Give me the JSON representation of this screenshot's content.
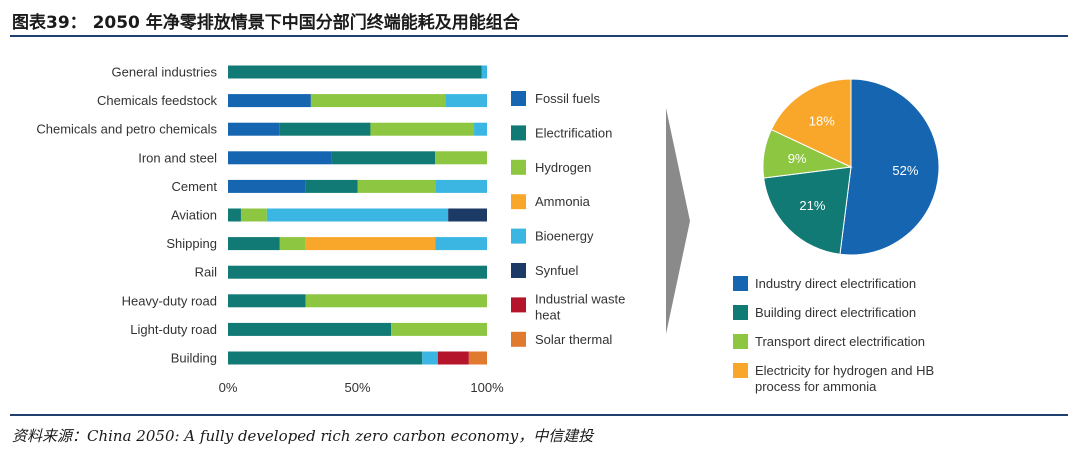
{
  "header": {
    "title": "图表39：  2050 年净零排放情景下中国分部门终端能耗及用能组合"
  },
  "footer": {
    "source": "资料来源：China 2050: A fully developed rich zero carbon economy，中信建投"
  },
  "chart_data": [
    {
      "type": "bar",
      "orientation": "horizontal",
      "stacked": true,
      "categories": [
        "General industries",
        "Chemicals feedstock",
        "Chemicals and petro chemicals",
        "Iron and steel",
        "Cement",
        "Aviation",
        "Shipping",
        "Rail",
        "Heavy-duty road",
        "Light-duty road",
        "Building"
      ],
      "xticks": [
        "0%",
        "50%",
        "100%"
      ],
      "xlim": [
        0,
        100
      ],
      "series": [
        {
          "name": "Fossil fuels",
          "color": "#1565b0",
          "values": [
            0,
            32,
            20,
            40,
            30,
            0,
            0,
            0,
            0,
            0,
            0
          ]
        },
        {
          "name": "Electrification",
          "color": "#117a74",
          "values": [
            98,
            0,
            35,
            40,
            20,
            5,
            20,
            100,
            30,
            63,
            75
          ]
        },
        {
          "name": "Hydrogen",
          "color": "#8dc641",
          "values": [
            0,
            52,
            40,
            20,
            30,
            10,
            10,
            0,
            70,
            37,
            0
          ]
        },
        {
          "name": "Ammonia",
          "color": "#f9a72b",
          "values": [
            0,
            0,
            0,
            0,
            0,
            0,
            50,
            0,
            0,
            0,
            0
          ]
        },
        {
          "name": "Bioenergy",
          "color": "#3bb6e3",
          "values": [
            2,
            16,
            5,
            0,
            20,
            70,
            20,
            0,
            0,
            0,
            6
          ]
        },
        {
          "name": "Synfuel",
          "color": "#1c3a66",
          "values": [
            0,
            0,
            0,
            0,
            0,
            15,
            0,
            0,
            0,
            0,
            0
          ]
        },
        {
          "name": "Industrial waste heat",
          "color": "#b5152b",
          "values": [
            0,
            0,
            0,
            0,
            0,
            0,
            0,
            0,
            0,
            0,
            12
          ]
        },
        {
          "name": "Solar thermal",
          "color": "#e07a2e",
          "values": [
            0,
            0,
            0,
            0,
            0,
            0,
            0,
            0,
            0,
            0,
            7
          ]
        }
      ],
      "legend": [
        "Fossil fuels",
        "Electrification",
        "Hydrogen",
        "Ammonia",
        "Bioenergy",
        "Synfuel",
        "Industrial waste heat",
        "Solar thermal"
      ]
    },
    {
      "type": "pie",
      "slices": [
        {
          "name": "Industry direct electrification",
          "value": 52,
          "label": "52%",
          "color": "#1565b0"
        },
        {
          "name": "Building direct electrification",
          "value": 21,
          "label": "21%",
          "color": "#117a74"
        },
        {
          "name": "Transport direct electrification",
          "value": 9,
          "label": "9%",
          "color": "#8dc641"
        },
        {
          "name": "Electricity for hydrogen and HB process for ammonia",
          "value": 18,
          "label": "18%",
          "color": "#f9a72b"
        }
      ],
      "legend": [
        "Industry direct electrification",
        "Building direct electrification",
        "Transport direct electrification",
        "Electricity for hydrogen and HB process for ammonia"
      ]
    }
  ]
}
